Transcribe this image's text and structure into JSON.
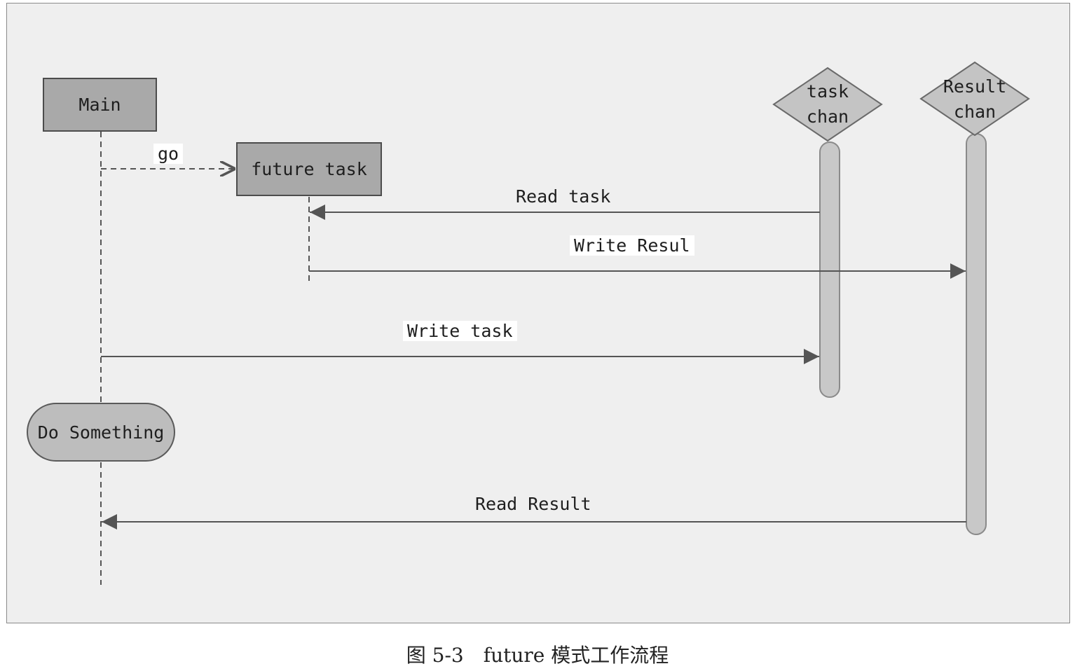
{
  "participants": {
    "main": "Main",
    "future_task": "future task",
    "task_chan": [
      "task",
      "chan"
    ],
    "result_chan": [
      "Result",
      "chan"
    ]
  },
  "messages": {
    "go": "go",
    "read_task": "Read task",
    "write_result": "Write Resul",
    "write_task": "Write task",
    "read_result": "Read Result"
  },
  "activity": {
    "do_something": "Do Something"
  },
  "caption": "图 5-3　future 模式工作流程",
  "colors": {
    "background": "#efefef",
    "box_fill": "#a9a9a9",
    "pill_fill": "#bdbdbd",
    "line": "#5a5a5a"
  }
}
